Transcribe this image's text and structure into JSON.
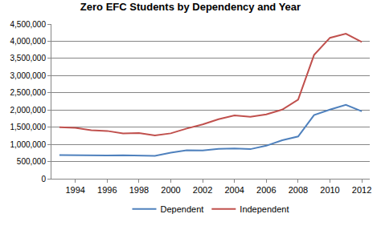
{
  "chart_data": {
    "type": "line",
    "title": "Zero EFC Students by Dependency and Year",
    "x": [
      1993,
      1994,
      1995,
      1996,
      1997,
      1998,
      1999,
      2000,
      2001,
      2002,
      2003,
      2004,
      2005,
      2006,
      2007,
      2008,
      2009,
      2010,
      2011,
      2012
    ],
    "series": [
      {
        "name": "Dependent",
        "color": "#4f81bd",
        "values": [
          690000,
          680000,
          670000,
          675000,
          680000,
          680000,
          665000,
          760000,
          830000,
          820000,
          870000,
          880000,
          860000,
          960000,
          1120000,
          1230000,
          1850000,
          2010000,
          2150000,
          1960000
        ]
      },
      {
        "name": "Independent",
        "color": "#c0504d",
        "values": [
          1500000,
          1480000,
          1410000,
          1390000,
          1320000,
          1330000,
          1260000,
          1320000,
          1460000,
          1580000,
          1730000,
          1840000,
          1800000,
          1870000,
          2010000,
          2300000,
          3600000,
          4100000,
          4220000,
          3980000
        ]
      }
    ],
    "xlim": [
      1992.5,
      2012.5
    ],
    "xticks": [
      1994,
      1996,
      1998,
      2000,
      2002,
      2004,
      2006,
      2008,
      2010,
      2012
    ],
    "ylim": [
      0,
      4500000
    ],
    "yticks": [
      0,
      {
        "value": 500000,
        "label": "500,000"
      },
      {
        "value": 1000000,
        "label": "1,000,000"
      },
      {
        "value": 1500000,
        "label": "1,500,000"
      },
      {
        "value": 2000000,
        "label": "2,000,000"
      },
      {
        "value": 2500000,
        "label": "2,500,000"
      },
      {
        "value": 3000000,
        "label": "3,000,000"
      },
      {
        "value": 3500000,
        "label": "3,500,000"
      },
      {
        "value": 4000000,
        "label": "4,000,000"
      },
      {
        "value": 4500000,
        "label": "4,500,000"
      }
    ],
    "grid": true,
    "legend": "bottom"
  }
}
